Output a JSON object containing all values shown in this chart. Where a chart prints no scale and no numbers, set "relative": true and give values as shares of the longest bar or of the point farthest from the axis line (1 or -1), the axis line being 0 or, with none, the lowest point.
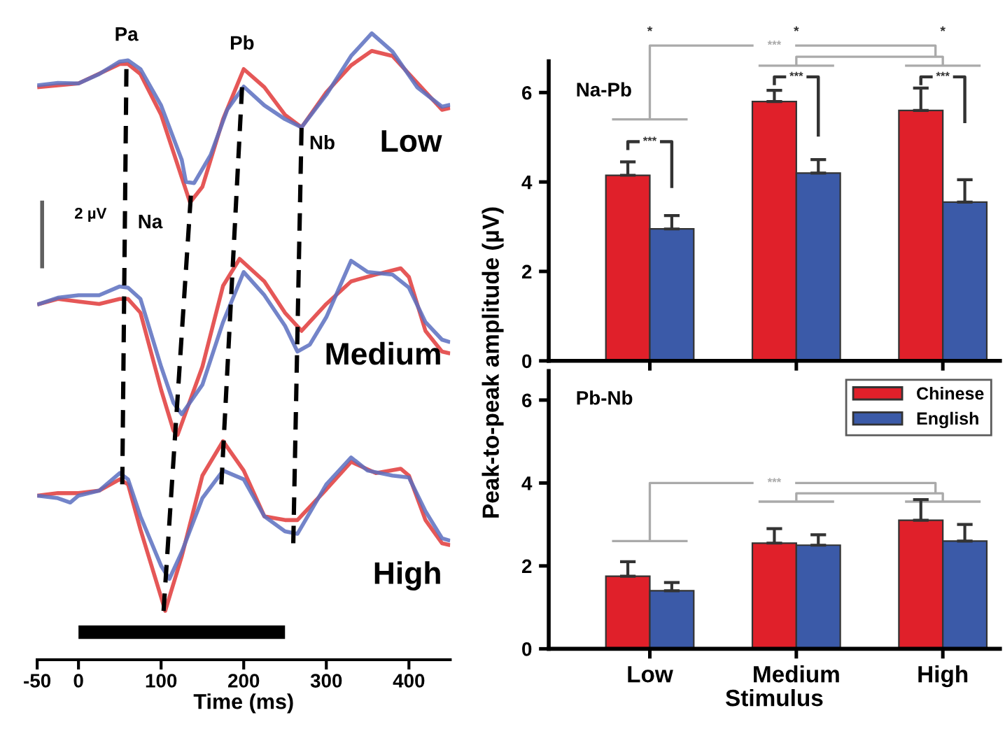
{
  "chart_data": [
    {
      "type": "line",
      "relative": true,
      "xlabel": "Time (ms)",
      "xlim": [
        -50,
        450
      ],
      "xticks": [
        -50,
        0,
        100,
        200,
        300,
        400
      ],
      "tick_labels": "x",
      "grid": false,
      "marker": "none",
      "line_style": "solid",
      "x": [
        -50,
        -25,
        0,
        25,
        50,
        60,
        75,
        100,
        125,
        130,
        140,
        160,
        180,
        200,
        225,
        250,
        270,
        300,
        330,
        355,
        380,
        410,
        440,
        450
      ],
      "series": [
        {
          "color": "#e03a3a",
          "x": [
            -50,
            0,
            50,
            60,
            75,
            100,
            125,
            135,
            150,
            175,
            200,
            225,
            250,
            270,
            300,
            330,
            355,
            380,
            410,
            440,
            450
          ],
          "values": [
            0.914,
            0.92,
            0.951,
            0.951,
            0.935,
            0.87,
            0.77,
            0.73,
            0.755,
            0.863,
            0.943,
            0.914,
            0.87,
            0.85,
            0.906,
            0.949,
            0.972,
            0.964,
            0.921,
            0.878,
            0.881
          ]
        },
        {
          "color": "#5a6fc0",
          "values": [
            0.917,
            0.921,
            0.92,
            0.935,
            0.955,
            0.957,
            0.943,
            0.885,
            0.798,
            0.763,
            0.761,
            0.806,
            0.878,
            0.915,
            0.885,
            0.863,
            0.85,
            0.902,
            0.964,
            1.0,
            0.971,
            0.914,
            0.883,
            0.886
          ]
        },
        {
          "color": "#e03a3a",
          "x": [
            -50,
            -25,
            0,
            25,
            50,
            60,
            75,
            100,
            115,
            120,
            150,
            175,
            195,
            225,
            250,
            270,
            300,
            330,
            360,
            390,
            400,
            420,
            440,
            450
          ],
          "values": [
            0.567,
            0.576,
            0.572,
            0.568,
            0.576,
            0.576,
            0.554,
            0.431,
            0.366,
            0.359,
            0.468,
            0.597,
            0.64,
            0.604,
            0.554,
            0.525,
            0.568,
            0.604,
            0.615,
            0.625,
            0.611,
            0.525,
            0.492,
            0.489
          ]
        },
        {
          "color": "#5a6fc0",
          "x": [
            -50,
            -25,
            0,
            25,
            50,
            60,
            75,
            100,
            115,
            125,
            150,
            175,
            200,
            225,
            250,
            265,
            280,
            300,
            330,
            350,
            380,
            400,
            420,
            440,
            450
          ],
          "values": [
            0.567,
            0.578,
            0.582,
            0.582,
            0.596,
            0.594,
            0.576,
            0.468,
            0.41,
            0.392,
            0.439,
            0.539,
            0.619,
            0.582,
            0.533,
            0.492,
            0.503,
            0.547,
            0.637,
            0.619,
            0.615,
            0.594,
            0.539,
            0.511,
            0.507
          ]
        },
        {
          "color": "#e03a3a",
          "x": [
            -50,
            -25,
            0,
            25,
            50,
            60,
            75,
            100,
            105,
            125,
            150,
            175,
            200,
            225,
            250,
            265,
            300,
            330,
            360,
            390,
            400,
            420,
            440,
            450
          ],
          "values": [
            0.262,
            0.266,
            0.266,
            0.27,
            0.288,
            0.28,
            0.208,
            0.1,
            0.078,
            0.165,
            0.294,
            0.349,
            0.302,
            0.229,
            0.223,
            0.223,
            0.272,
            0.316,
            0.298,
            0.305,
            0.294,
            0.223,
            0.186,
            0.183
          ]
        },
        {
          "color": "#5a6fc0",
          "x": [
            -50,
            -25,
            -10,
            0,
            25,
            50,
            60,
            75,
            100,
            110,
            125,
            150,
            175,
            200,
            225,
            250,
            265,
            300,
            330,
            350,
            380,
            400,
            420,
            440,
            450
          ],
          "values": [
            0.262,
            0.258,
            0.251,
            0.262,
            0.27,
            0.298,
            0.288,
            0.229,
            0.15,
            0.129,
            0.172,
            0.258,
            0.302,
            0.288,
            0.229,
            0.205,
            0.201,
            0.28,
            0.323,
            0.302,
            0.294,
            0.291,
            0.237,
            0.194,
            0.19
          ]
        },
        {
          "color": "#000000",
          "line_style": "dashed",
          "x": [
            58,
            53
          ],
          "values": [
            0.943,
            0.28
          ]
        },
        {
          "color": "#000000",
          "line_style": "dashed",
          "x": [
            136,
            103
          ],
          "values": [
            0.741,
            0.078
          ]
        },
        {
          "color": "#000000",
          "line_style": "dashed",
          "x": [
            198,
            173
          ],
          "values": [
            0.914,
            0.28
          ]
        },
        {
          "color": "#000000",
          "line_style": "dashed",
          "x": [
            270,
            260
          ],
          "values": [
            0.849,
            0.186
          ]
        },
        {
          "color": "#000000",
          "line_style": "solid",
          "x": [
            0,
            250
          ],
          "values": [
            0.044,
            0.044
          ]
        },
        {
          "color": "#444444",
          "x": [
            -44,
            -44
          ],
          "values": [
            0.625,
            0.733
          ]
        }
      ],
      "annotations": [
        {
          "text": "Pa",
          "x": 58,
          "y": 0.957
        },
        {
          "text": "Na",
          "x": 130,
          "y": 0.73
        },
        {
          "text": "Pb",
          "x": 198,
          "y": 0.943
        },
        {
          "text": "Nb",
          "x": 270,
          "y": 0.85
        },
        "Low",
        "Medium",
        "High",
        "2 µV"
      ]
    },
    {
      "type": "bar",
      "title": "Na-Pb",
      "categories": [
        null,
        null,
        null
      ],
      "ylim": [
        0,
        6.7
      ],
      "yticks": [
        0,
        2,
        4,
        6
      ],
      "tick_labels": "y",
      "grid": false,
      "series": [
        {
          "color": "#e0202a",
          "values": [
            4.15,
            5.8,
            5.6
          ],
          "errors": [
            0.3,
            0.25,
            0.5
          ]
        },
        {
          "color": "#3b5aa8",
          "values": [
            2.95,
            4.2,
            3.55
          ],
          "errors": [
            0.3,
            0.3,
            0.5
          ]
        }
      ],
      "annotations": [
        "***",
        "***",
        "***",
        "*",
        "*",
        "*",
        "***"
      ]
    },
    {
      "type": "bar",
      "title": "Pb-Nb",
      "categories": [
        "Low",
        "Medium",
        "High"
      ],
      "xlabel": "Stimulus",
      "ylabel": "Peak-to-peak amplitude (µV)",
      "ylim": [
        0,
        6.7
      ],
      "yticks": [
        0,
        2,
        4,
        6
      ],
      "grid": false,
      "legend": "top right",
      "series": [
        {
          "name": "Chinese",
          "color": "#e0202a",
          "values": [
            1.75,
            2.55,
            3.1
          ],
          "errors": [
            0.35,
            0.35,
            0.5
          ]
        },
        {
          "name": "English",
          "color": "#3b5aa8",
          "values": [
            1.4,
            2.5,
            2.6
          ],
          "errors": [
            0.2,
            0.25,
            0.4
          ]
        }
      ],
      "annotations": [
        "***"
      ]
    }
  ]
}
